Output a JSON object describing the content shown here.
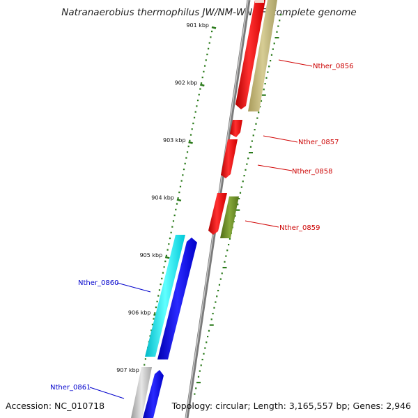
{
  "title": "Natranaerobius thermophilus JW/NM-WN-LF, complete genome",
  "accession": "Accession: NC_010718",
  "topology": "Topology: circular; Length: 3,165,557 bp; Genes: 2,946",
  "colors": {
    "backbone": "#8c8c8c",
    "tick": "#2a7a1a",
    "forward_gene": "#ff0000",
    "tan_gene": "#c2b77a",
    "olive_gene": "#6b8e23",
    "cyan_gene": "#00e5ee",
    "blue_gene": "#0000ee",
    "grey_gene": "#bdbdbd",
    "label_red": "#cc0000",
    "label_blue": "#0000cc"
  },
  "ticks": [
    {
      "label": "901 kbp"
    },
    {
      "label": "902 kbp"
    },
    {
      "label": "903 kbp"
    },
    {
      "label": "904 kbp"
    },
    {
      "label": "905 kbp"
    },
    {
      "label": "906 kbp"
    },
    {
      "label": "907 kbp"
    }
  ],
  "gene_labels": [
    {
      "text": "Nther_0856"
    },
    {
      "text": "Nther_0857"
    },
    {
      "text": "Nther_0858"
    },
    {
      "text": "Nther_0859"
    },
    {
      "text": "Nther_0860"
    },
    {
      "text": "Nther_0861"
    }
  ]
}
